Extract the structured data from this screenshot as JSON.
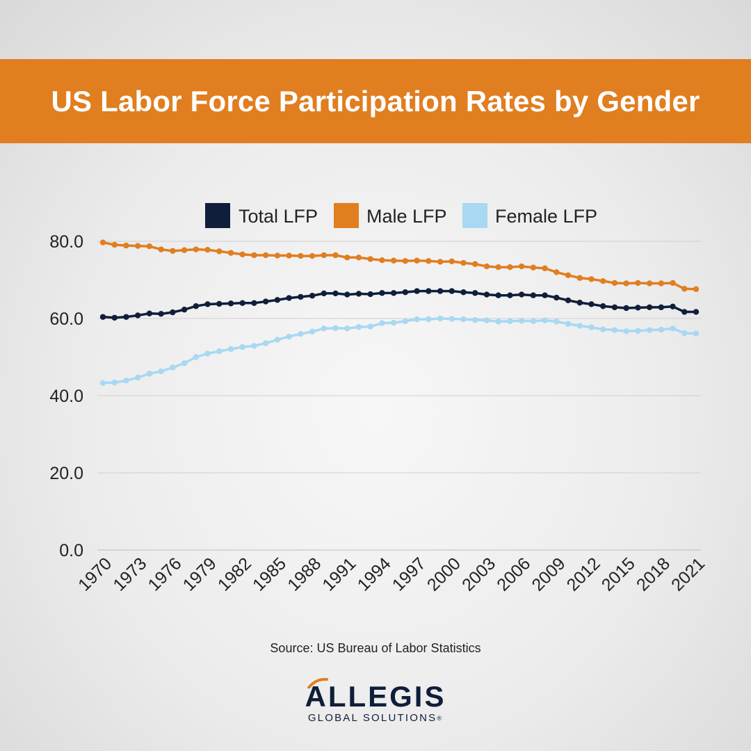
{
  "colors": {
    "banner": "#e07e20",
    "total": "#0f1e3a",
    "male": "#e07e20",
    "female": "#a8d8f2",
    "grid": "#cfcfcf"
  },
  "source": "Source: US Bureau of Labor Statistics",
  "logo": {
    "main": "ALLEGIS",
    "sub": "GLOBAL SOLUTIONS",
    "mark": "®"
  },
  "chart_data": {
    "type": "line",
    "title": "US Labor Force Participation Rates by Gender",
    "legend_position": "top-center",
    "grid": "horizontal",
    "ylim": [
      0,
      80
    ],
    "y_ticks": [
      "0.0",
      "20.0",
      "40.0",
      "60.0",
      "80.0"
    ],
    "y_tick_values": [
      0,
      20,
      40,
      60,
      80
    ],
    "x_tick_labels": [
      "1970",
      "1973",
      "1976",
      "1979",
      "1982",
      "1985",
      "1988",
      "1991",
      "1994",
      "1997",
      "2000",
      "2003",
      "2006",
      "2009",
      "2012",
      "2015",
      "2018",
      "2021"
    ],
    "x": [
      1970,
      1971,
      1972,
      1973,
      1974,
      1975,
      1976,
      1977,
      1978,
      1979,
      1980,
      1981,
      1982,
      1983,
      1984,
      1985,
      1986,
      1987,
      1988,
      1989,
      1990,
      1991,
      1992,
      1993,
      1994,
      1995,
      1996,
      1997,
      1998,
      1999,
      2000,
      2001,
      2002,
      2003,
      2004,
      2005,
      2006,
      2007,
      2008,
      2009,
      2010,
      2011,
      2012,
      2013,
      2014,
      2015,
      2016,
      2017,
      2018,
      2019,
      2020,
      2021
    ],
    "series": [
      {
        "name": "Total LFP",
        "color_key": "total",
        "values": [
          60.4,
          60.2,
          60.4,
          60.8,
          61.3,
          61.2,
          61.6,
          62.3,
          63.2,
          63.7,
          63.8,
          63.9,
          64.0,
          64.0,
          64.4,
          64.8,
          65.3,
          65.6,
          65.9,
          66.5,
          66.5,
          66.2,
          66.4,
          66.3,
          66.6,
          66.6,
          66.8,
          67.1,
          67.1,
          67.1,
          67.1,
          66.8,
          66.6,
          66.2,
          66.0,
          66.0,
          66.2,
          66.0,
          66.0,
          65.4,
          64.7,
          64.1,
          63.7,
          63.2,
          62.9,
          62.7,
          62.8,
          62.9,
          62.9,
          63.1,
          61.7,
          61.7
        ]
      },
      {
        "name": "Male LFP",
        "color_key": "male",
        "values": [
          79.7,
          79.1,
          78.9,
          78.8,
          78.7,
          77.9,
          77.5,
          77.7,
          77.9,
          77.8,
          77.4,
          77.0,
          76.6,
          76.4,
          76.4,
          76.3,
          76.3,
          76.2,
          76.2,
          76.4,
          76.4,
          75.8,
          75.8,
          75.4,
          75.1,
          75.0,
          74.9,
          75.0,
          74.9,
          74.7,
          74.8,
          74.4,
          74.1,
          73.5,
          73.3,
          73.3,
          73.5,
          73.2,
          73.0,
          72.0,
          71.2,
          70.5,
          70.2,
          69.7,
          69.2,
          69.1,
          69.2,
          69.1,
          69.1,
          69.2,
          67.7,
          67.6
        ]
      },
      {
        "name": "Female LFP",
        "color_key": "female",
        "values": [
          43.3,
          43.4,
          43.9,
          44.7,
          45.7,
          46.3,
          47.3,
          48.4,
          50.0,
          50.9,
          51.5,
          52.1,
          52.6,
          52.9,
          53.6,
          54.5,
          55.3,
          56.0,
          56.6,
          57.4,
          57.5,
          57.4,
          57.8,
          57.9,
          58.8,
          58.9,
          59.3,
          59.8,
          59.8,
          60.0,
          59.9,
          59.8,
          59.6,
          59.5,
          59.2,
          59.3,
          59.4,
          59.3,
          59.5,
          59.2,
          58.6,
          58.1,
          57.7,
          57.2,
          57.0,
          56.7,
          56.8,
          57.0,
          57.1,
          57.4,
          56.2,
          56.1
        ]
      }
    ]
  }
}
